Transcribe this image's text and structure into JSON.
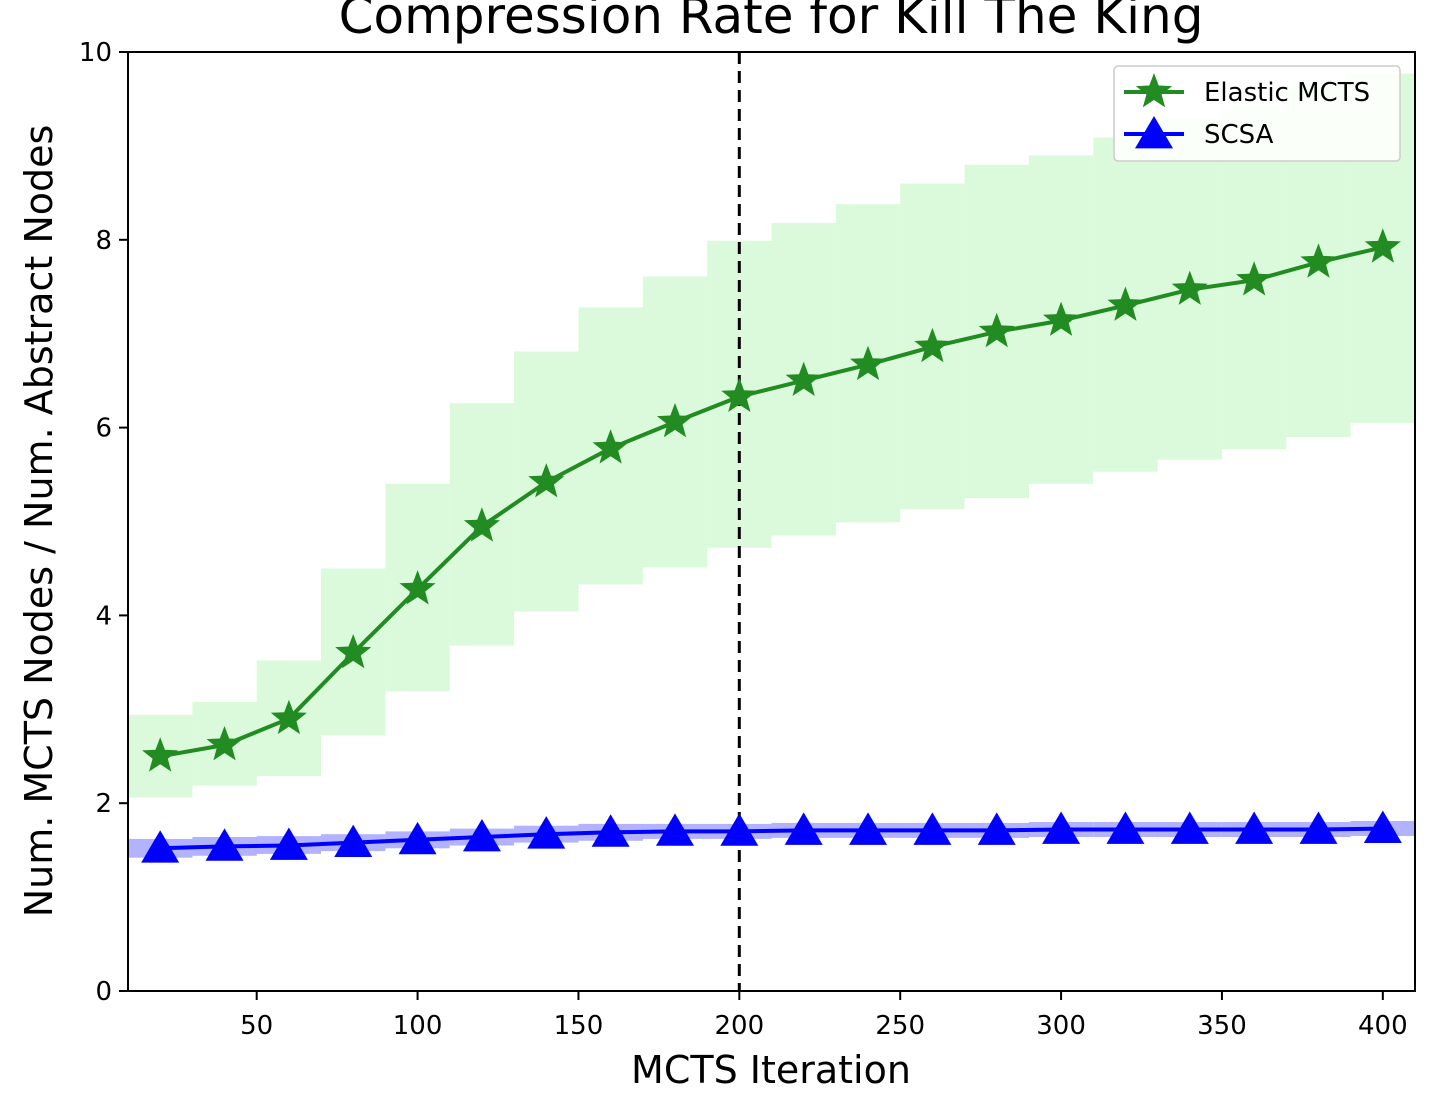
{
  "chart_data": {
    "type": "line",
    "title": "Compression Rate for Kill The King",
    "xlabel": "MCTS Iteration",
    "ylabel": "Num. MCTS Nodes / Num. Abstract Nodes",
    "xlim": [
      10,
      410
    ],
    "ylim": [
      0,
      10
    ],
    "xticks": [
      50,
      100,
      150,
      200,
      250,
      300,
      350,
      400
    ],
    "yticks": [
      0,
      2,
      4,
      6,
      8,
      10
    ],
    "grid": false,
    "legend_position": "top-right",
    "reference_line": {
      "x": 200,
      "style": "dashed",
      "color": "#000000"
    },
    "x": [
      20,
      40,
      60,
      80,
      100,
      120,
      140,
      160,
      180,
      200,
      220,
      240,
      260,
      280,
      300,
      320,
      340,
      360,
      380,
      400
    ],
    "series": [
      {
        "name": "Elastic MCTS",
        "color": "#228b22",
        "band_color": "#90ee90",
        "marker": "star",
        "values": [
          2.5,
          2.62,
          2.9,
          3.6,
          4.28,
          4.95,
          5.42,
          5.78,
          6.06,
          6.33,
          6.5,
          6.67,
          6.86,
          7.02,
          7.14,
          7.3,
          7.47,
          7.57,
          7.76,
          7.92
        ],
        "lower": [
          2.06,
          2.19,
          2.29,
          2.72,
          3.19,
          3.68,
          4.04,
          4.33,
          4.51,
          4.72,
          4.85,
          4.99,
          5.13,
          5.25,
          5.4,
          5.53,
          5.66,
          5.77,
          5.9,
          6.05
        ],
        "upper": [
          2.94,
          3.08,
          3.52,
          4.5,
          5.4,
          6.26,
          6.81,
          7.28,
          7.61,
          7.99,
          8.18,
          8.38,
          8.6,
          8.8,
          8.9,
          9.09,
          9.29,
          9.4,
          9.62,
          9.77
        ]
      },
      {
        "name": "SCSA",
        "color": "#0000ff",
        "band_color": "#0000ff",
        "marker": "triangle",
        "values": [
          1.52,
          1.54,
          1.55,
          1.58,
          1.61,
          1.64,
          1.67,
          1.69,
          1.7,
          1.7,
          1.71,
          1.71,
          1.71,
          1.71,
          1.72,
          1.72,
          1.72,
          1.72,
          1.72,
          1.73
        ],
        "lower": [
          1.42,
          1.44,
          1.46,
          1.49,
          1.52,
          1.55,
          1.58,
          1.6,
          1.62,
          1.62,
          1.63,
          1.63,
          1.63,
          1.63,
          1.64,
          1.64,
          1.64,
          1.64,
          1.64,
          1.65
        ],
        "upper": [
          1.62,
          1.64,
          1.65,
          1.67,
          1.7,
          1.73,
          1.76,
          1.78,
          1.78,
          1.78,
          1.79,
          1.79,
          1.79,
          1.79,
          1.8,
          1.8,
          1.8,
          1.8,
          1.8,
          1.81
        ]
      }
    ]
  }
}
